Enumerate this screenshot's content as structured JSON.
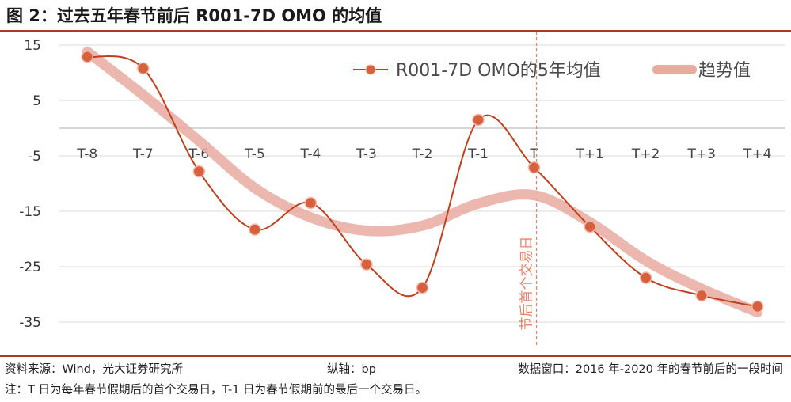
{
  "figure": {
    "title": "图 2：过去五年春节前后 R001-7D OMO 的均值"
  },
  "chart_data": {
    "type": "line",
    "title": "图 2：过去五年春节前后 R001-7D OMO 的均值",
    "categories": [
      "T-8",
      "T-7",
      "T-6",
      "T-5",
      "T-4",
      "T-3",
      "T-2",
      "T-1",
      "T",
      "T+1",
      "T+2",
      "T+3",
      "T+4"
    ],
    "ylim": [
      -35,
      15
    ],
    "yticks": [
      15,
      5,
      -5,
      -15,
      -25,
      -35
    ],
    "ytick_labels": [
      "15",
      "5",
      "-5",
      "-15",
      "-25",
      "-35"
    ],
    "grid": true,
    "series": [
      {
        "name": "R001-7D OMO的5年均值",
        "color": "#c0401e",
        "values": [
          12.9,
          10.8,
          -7.8,
          -18.3,
          -13.5,
          -24.6,
          -28.8,
          1.5,
          -7.1,
          -17.8,
          -27.0,
          -30.2,
          -32.2
        ]
      },
      {
        "name": "趋势值",
        "color": "#e9aaa0",
        "values": [
          13.8,
          6.0,
          -2.3,
          -10.8,
          -16.1,
          -18.5,
          -17.6,
          -13.6,
          -12.1,
          -17.0,
          -23.9,
          -29.0,
          -33.2
        ]
      }
    ],
    "annotation": {
      "text": "节后首个交易日",
      "at": "T",
      "color": "#e8826a"
    }
  },
  "footer": {
    "source": "资料来源：Wind，光大证券研究所",
    "axis": "纵轴：bp",
    "window": "数据窗口：2016 年-2020 年的春节前后的一段时间",
    "note": "注：T 日为每年春节假期后的首个交易日，T-1 日为春节假期前的最后一个交易日。"
  }
}
